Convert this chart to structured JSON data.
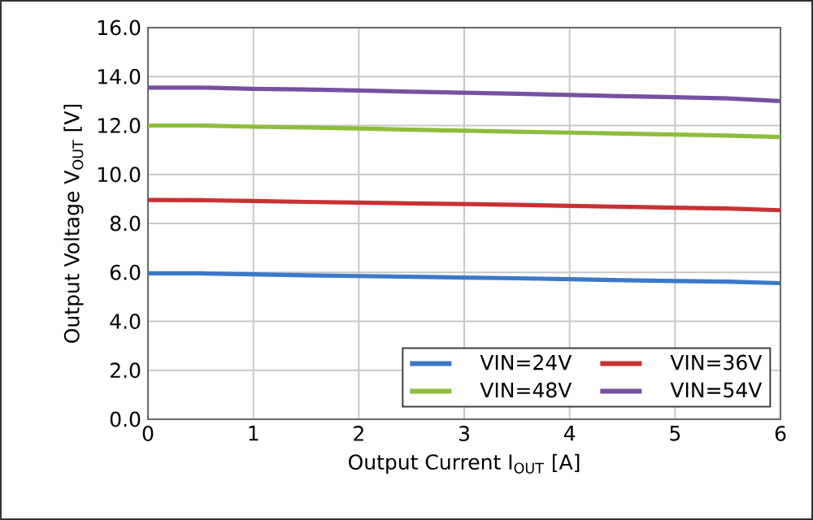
{
  "chart_data": {
    "type": "line",
    "xlabel": "Output Current I$_{OUT}$ [A]",
    "ylabel": "Output Voltage V$_{OUT}$ [V]",
    "x": [
      0,
      0.5,
      1,
      1.5,
      2,
      2.5,
      3,
      3.5,
      4,
      4.5,
      5,
      5.5,
      6
    ],
    "series": [
      {
        "name": "VIN=24V",
        "color": "#3c78c8",
        "values": [
          5.96,
          5.96,
          5.92,
          5.88,
          5.85,
          5.82,
          5.79,
          5.76,
          5.72,
          5.68,
          5.65,
          5.62,
          5.56
        ]
      },
      {
        "name": "VIN=36V",
        "color": "#c83232",
        "values": [
          8.96,
          8.95,
          8.92,
          8.88,
          8.85,
          8.82,
          8.79,
          8.76,
          8.72,
          8.68,
          8.64,
          8.61,
          8.54
        ]
      },
      {
        "name": "VIN=48V",
        "color": "#8cbe3c",
        "values": [
          12.0,
          12.0,
          11.95,
          11.92,
          11.88,
          11.83,
          11.79,
          11.75,
          11.71,
          11.67,
          11.63,
          11.59,
          11.53
        ]
      },
      {
        "name": "VIN=54V",
        "color": "#7850a0",
        "values": [
          13.55,
          13.55,
          13.5,
          13.47,
          13.43,
          13.38,
          13.34,
          13.3,
          13.25,
          13.2,
          13.16,
          13.11,
          13.0
        ]
      }
    ],
    "xlim": [
      0,
      6
    ],
    "ylim": [
      0,
      16
    ],
    "xticks": [
      0,
      1,
      2,
      3,
      4,
      5,
      6
    ],
    "yticks": [
      {
        "value": 0,
        "label": "0.0"
      },
      {
        "value": 2,
        "label": "2.0"
      },
      {
        "value": 4,
        "label": "4.0"
      },
      {
        "value": 6,
        "label": "6.0"
      },
      {
        "value": 8,
        "label": "8.0"
      },
      {
        "value": 10,
        "label": "10.0"
      },
      {
        "value": 12,
        "label": "12.0"
      },
      {
        "value": 14,
        "label": "14.0"
      },
      {
        "value": 16,
        "label": "16.0"
      }
    ],
    "grid": true,
    "legend": "bottom right",
    "marker": "none",
    "line_style": "solid"
  }
}
